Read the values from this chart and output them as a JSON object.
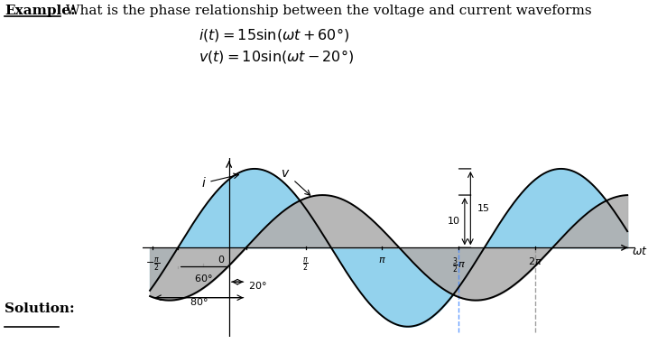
{
  "title_bold": "Example:",
  "title_rest": " What is the phase relationship between the voltage and current waveforms",
  "eq1_text": "i(t) = 15sin(wt + 60)",
  "eq2_text": "v(t) = 10sin(wt - 20)",
  "i_amplitude": 15,
  "v_amplitude": 10,
  "i_phase_deg": 60,
  "v_phase_deg": -20,
  "current_color": "#87CEEB",
  "voltage_color": "#B0B0B0",
  "line_color": "#000000",
  "solution_text": "Solution:",
  "background_color": "#ffffff"
}
